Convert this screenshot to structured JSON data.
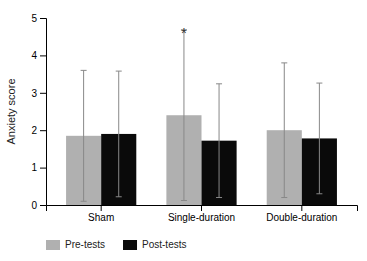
{
  "chart_data": {
    "type": "bar",
    "categories": [
      "Sham",
      "Single-duration",
      "Double-duration"
    ],
    "series": [
      {
        "name": "Pre-tests",
        "color": "#b0b0b0",
        "values": [
          1.85,
          2.4,
          2.0
        ],
        "errors": [
          1.75,
          2.28,
          1.8
        ]
      },
      {
        "name": "Post-tests",
        "color": "#0a0a0a",
        "values": [
          1.9,
          1.72,
          1.78
        ],
        "errors": [
          1.68,
          1.52,
          1.48
        ]
      }
    ],
    "ylabel": "Anxiety score",
    "ylim": [
      0,
      5
    ],
    "yticks": [
      0,
      1,
      2,
      3,
      4,
      5
    ],
    "grid": false,
    "legend": "bottom",
    "annotations": [
      {
        "text": "*",
        "category": "Single-duration",
        "series": "Pre-tests"
      }
    ]
  }
}
